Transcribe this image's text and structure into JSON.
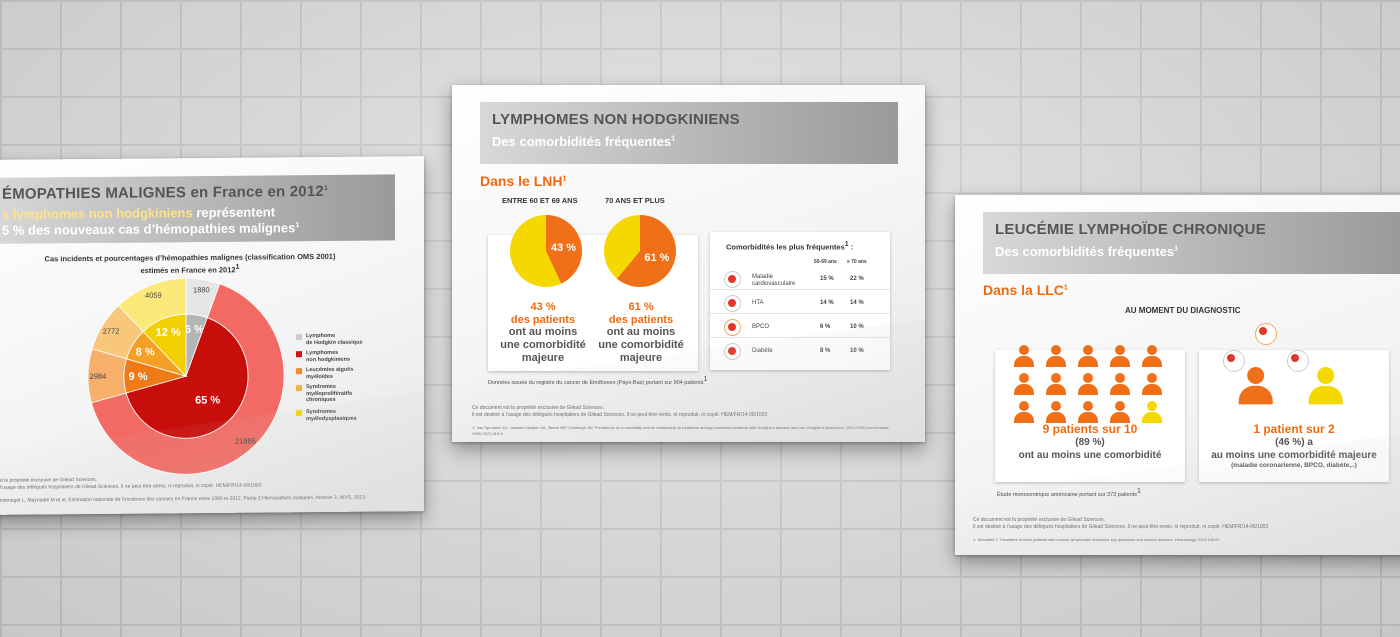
{
  "poster1": {
    "title_bold": "ÉMOPATHIES MALIGNES",
    "title_rest": " en France en 2012",
    "title_sup": "1",
    "subtitle_line1_orange": "s lymphomes non hodgkiniens",
    "subtitle_line1_rest": " représentent",
    "subtitle_line2": "5 % des nouveaux cas d’hémopathies malignes",
    "subtitle_sup": "1",
    "chart_title_line1": "Cas incidents et pourcentages d’hémopathies malignes (classification OMS 2001)",
    "chart_title_line2": "estimés en France en 2012",
    "chart_title_sup": "1",
    "footer_line1": "à la propriété exclusive de Gilead Sciences.",
    "footer_line2": "l’usage des délégués hospitaliers de Gilead Sciences. Il ne peut être remis, ni reproduit, ni copié. HEM/FR/14-06/1003",
    "footer_line3": "inteneget L, Maynadié M et al. Estimation nationale de l’incidence des cancers en France entre 1980 et 2012. Partie 2 Hémopathies malignes. Annexe 3, INVS, 2013."
  },
  "chart_data": {
    "type": "pie",
    "categories": [
      "Lymphome de Hodgkin classique",
      "Lymphomes non hodgkiniens",
      "Leucémies aiguës myéloïdes",
      "Syndromes myéloprolifératifs chroniques",
      "Syndromes myélodysplasiques"
    ],
    "values": [
      1880,
      21885,
      2984,
      2772,
      4059
    ],
    "percent_labels": [
      "6 %",
      "65 %",
      "9 %",
      "8 %",
      "12 %"
    ],
    "count_labels": [
      "1880",
      "21885",
      "2984",
      "2772",
      "4059"
    ],
    "colors": [
      "#c9c9c9",
      "#d0130f",
      "#f08a2a",
      "#f7b23a",
      "#f5d800"
    ],
    "legend_placement": "right",
    "legend": [
      {
        "line1": "Lymphome",
        "line2": "de Hodgkin classique"
      },
      {
        "line1": "Lymphomes",
        "line2": "non hodgkiniens"
      },
      {
        "line1": "Leucémies aiguës",
        "line2": "myéloïdes"
      },
      {
        "line1": "Syndromes",
        "line2": "myéloprolifératifs",
        "line3": "chroniques"
      },
      {
        "line1": "Syndromes",
        "line2": "myélodysplasiques"
      }
    ]
  },
  "poster2": {
    "title": "LYMPHOMES NON HODGKINIENS",
    "subtitle": "Des comorbidités fréquentes",
    "subtitle_sup": "1",
    "section": "Dans le LNH",
    "section_sup": "1",
    "group1_label": "ENTRE 60 ET 69 ANS",
    "group2_label": "70 ANS ET PLUS",
    "pie1_value": 43,
    "pie1_label": "43 %",
    "pie2_value": 61,
    "pie2_label": "61 %",
    "stat1": {
      "line1": "43 %",
      "line2": "des patients",
      "line3": "ont au moins",
      "line4": "une comorbidité",
      "line5": "majeure"
    },
    "stat2": {
      "line1": "61 %",
      "line2": "des patients",
      "line3": "ont au moins",
      "line4": "une comorbidité",
      "line5": "majeure"
    },
    "table_title": "Comorbidités les plus fréquentes",
    "table_title_sup": "1",
    "table_title_end": " :",
    "col1": "60-69 ans",
    "col2": "≥ 70 ans",
    "rows": [
      {
        "name": "Maladie cardiovasculaire",
        "v1": "15 %",
        "v2": "22 %",
        "icon": "heart-icon"
      },
      {
        "name": "HTA",
        "v1": "14 %",
        "v2": "14 %",
        "icon": "heart-pressure-icon"
      },
      {
        "name": "BPCO",
        "v1": "6 %",
        "v2": "10 %",
        "icon": "lungs-icon"
      },
      {
        "name": "Diabète",
        "v1": "8 %",
        "v2": "10 %",
        "icon": "syringe-icon"
      }
    ],
    "source_note": "Données issues du registre du cancer de Eindhoven (Pays-Bas) portant sur 904 patients",
    "source_sup": "1",
    "footer_line1": "Ce document est la propriété exclusive de Gilead Sciences.",
    "footer_line2": "Il est destiné à l’usage des délégués hospitaliers de Gilead Sciences. Il ne peut être remis, ni reproduit, ni copié. HEM/FR/14-06/1003",
    "footer_line3": "1. Van Spronsen DJ, Janssen-Heijnen ML, Breed WP, Coebergh JW. Prevalence of co-morbidity and its relationship to treatment among unselected patients with Hodgkin’s disease and non-Hodgkin’s lymphoma, 1993-1996 Ann hematol. 1999;78(7):315-9."
  },
  "poster3": {
    "title": "LEUCÉMIE LYMPHOÏDE CHRONIQUE",
    "subtitle": "Des comorbidités fréquentes",
    "subtitle_sup": "1",
    "section": "Dans la LLC",
    "section_sup": "1",
    "moment": "AU MOMENT DU DIAGNOSTIC",
    "stat1": {
      "line1": "9 patients sur 10",
      "line2": "(89 %)",
      "line3": "ont au moins une comorbidité"
    },
    "stat2": {
      "line1": "1 patient sur 2",
      "line2": "(46 %) a",
      "line3": "au moins une comorbidité majeure",
      "line4": "(maladie coronarienne, BPCO, diabète,..)"
    },
    "source_note": "Étude monocentrique américaine portant sur 373 patients",
    "source_sup": "1",
    "footer_line1": "Ce document est la propriété exclusive de Gilead Sciences.",
    "footer_line2": "Il est destiné à l’usage des délégués hospitaliers de Gilead Sciences. Il ne peut être remis, ni reproduit, ni copié. HEM/FR/14-06/1003",
    "footer_line3": "1. Shanafelt T. Treatment of older patients with chronic lymphocytic leukemia: key questions and current answers. Hematology 2013:158-67."
  },
  "colors": {
    "orange": "#ee6a11",
    "red": "#d0130f",
    "yellow": "#f5d800",
    "grey_band": "#9a9a9a"
  }
}
